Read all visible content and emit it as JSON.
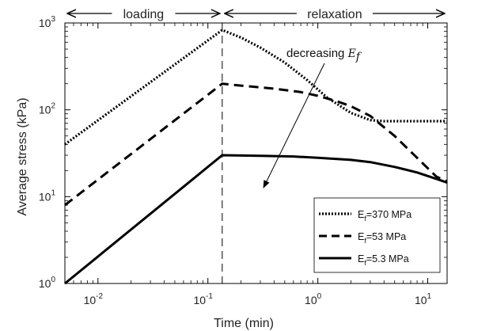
{
  "chart_data": {
    "type": "line",
    "x_scale": "log",
    "y_scale": "log",
    "xlabel": "Time (min)",
    "ylabel": "Average stress (kPa)",
    "xlim": [
      0.005,
      15
    ],
    "ylim": [
      1,
      1000
    ],
    "x_ticks": [
      {
        "value": 0.01,
        "base": "10",
        "exp": "-2"
      },
      {
        "value": 0.1,
        "base": "10",
        "exp": "-1"
      },
      {
        "value": 1,
        "base": "10",
        "exp": "0"
      },
      {
        "value": 10,
        "base": "10",
        "exp": "1"
      }
    ],
    "y_ticks": [
      {
        "value": 1,
        "base": "10",
        "exp": "0"
      },
      {
        "value": 10,
        "base": "10",
        "exp": "1"
      },
      {
        "value": 100,
        "base": "10",
        "exp": "2"
      },
      {
        "value": 1000,
        "base": "10",
        "exp": "3"
      }
    ],
    "phase_marker_x": 0.135,
    "phases": [
      {
        "label": "loading",
        "from": 0.005,
        "to": 0.135
      },
      {
        "label": "relaxation",
        "from": 0.135,
        "to": 15
      }
    ],
    "annotation": {
      "text": "decreasing ",
      "math": "E",
      "sub": "f"
    },
    "series": [
      {
        "name": "E_f=370 MPa",
        "legend_prefix": "E",
        "legend_sub": "f",
        "legend_value": "=370 MPa",
        "style": "dotted",
        "x": [
          0.005,
          0.135,
          0.2,
          0.3,
          0.5,
          0.8,
          1.2,
          2,
          3,
          4,
          6,
          10,
          15
        ],
        "y": [
          40,
          830,
          680,
          520,
          350,
          220,
          140,
          92,
          76,
          74,
          74,
          74,
          74
        ]
      },
      {
        "name": "E_f=53 MPa",
        "legend_prefix": "E",
        "legend_sub": "f",
        "legend_value": "=53 MPa",
        "style": "dashed",
        "x": [
          0.005,
          0.135,
          0.2,
          0.4,
          0.7,
          1,
          1.5,
          2,
          3,
          5,
          8,
          12,
          15
        ],
        "y": [
          8,
          200,
          190,
          175,
          160,
          145,
          125,
          110,
          85,
          50,
          28,
          17,
          15
        ]
      },
      {
        "name": "E_f=5.3 MPa",
        "legend_prefix": "E",
        "legend_sub": "f",
        "legend_value": "=5.3 MPa",
        "style": "solid",
        "x": [
          0.005,
          0.135,
          0.3,
          0.6,
          1,
          2,
          3,
          5,
          8,
          12,
          15
        ],
        "y": [
          1,
          30,
          29.5,
          29,
          28,
          26.5,
          25,
          22,
          19,
          16,
          14.5
        ]
      }
    ]
  }
}
